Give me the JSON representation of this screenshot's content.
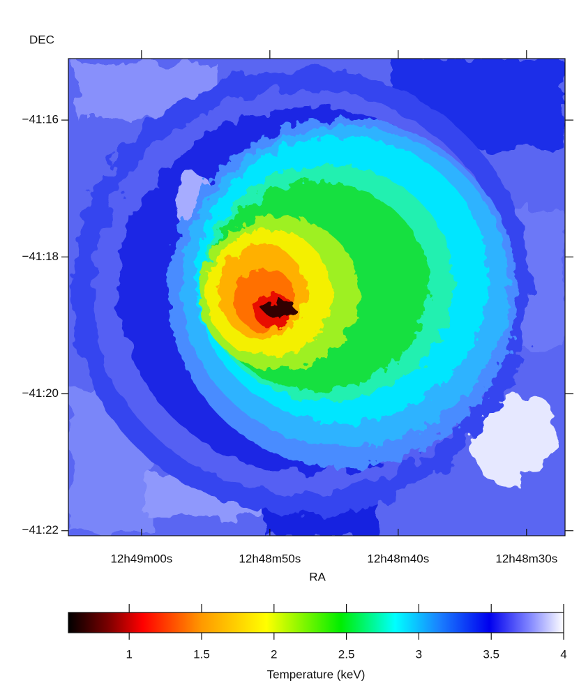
{
  "chart_data": {
    "type": "heatmap",
    "xlabel": "RA",
    "ylabel": "DEC",
    "xlim": [
      46145.7,
      46107.0
    ],
    "xticks": [
      {
        "value": 46140,
        "label": "12h49m00s"
      },
      {
        "value": 46130,
        "label": "12h48m50s"
      },
      {
        "value": 46120,
        "label": "12h48m40s"
      },
      {
        "value": 46110,
        "label": "12h48m30s"
      }
    ],
    "ylim": [
      -41.3679,
      -41.2517
    ],
    "yticks": [
      {
        "value": -41.26667,
        "label": "−41:16"
      },
      {
        "value": -41.3,
        "label": "−41:18"
      },
      {
        "value": -41.33333,
        "label": "−41:20"
      },
      {
        "value": -41.36667,
        "label": "−41:22"
      }
    ],
    "colorbar": {
      "label": "Temperature (keV)",
      "xlim": [
        0.58,
        4
      ],
      "xticks": [
        1,
        1.5,
        2,
        2.5,
        3,
        3.5,
        4
      ]
    }
  }
}
